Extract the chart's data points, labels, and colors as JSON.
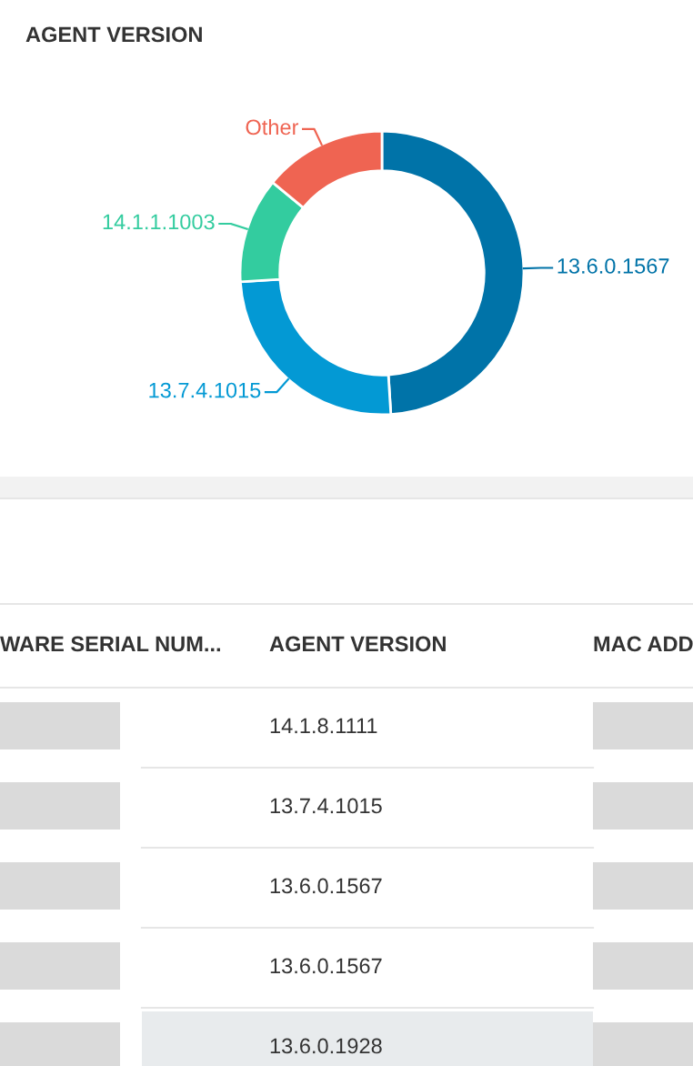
{
  "chart_data": [
    {
      "type": "donut",
      "title": "AGENT VERSION",
      "categories": [
        "13.6.0.1567",
        "13.7.4.1015",
        "14.1.1.1003",
        "Other"
      ],
      "values": [
        49,
        25,
        12,
        14
      ],
      "colors": [
        "#0073a8",
        "#0399d4",
        "#33cc9f",
        "#ef6452"
      ]
    },
    {
      "type": "other",
      "categories": [
        "WARE SERIAL NUM...",
        "AGENT VERSION",
        "MAC ADD"
      ],
      "annotations": [
        "14.1.8.1111",
        "13.7.4.1015",
        "13.6.0.1567",
        "13.6.0.1567",
        "13.6.0.1928"
      ]
    }
  ]
}
